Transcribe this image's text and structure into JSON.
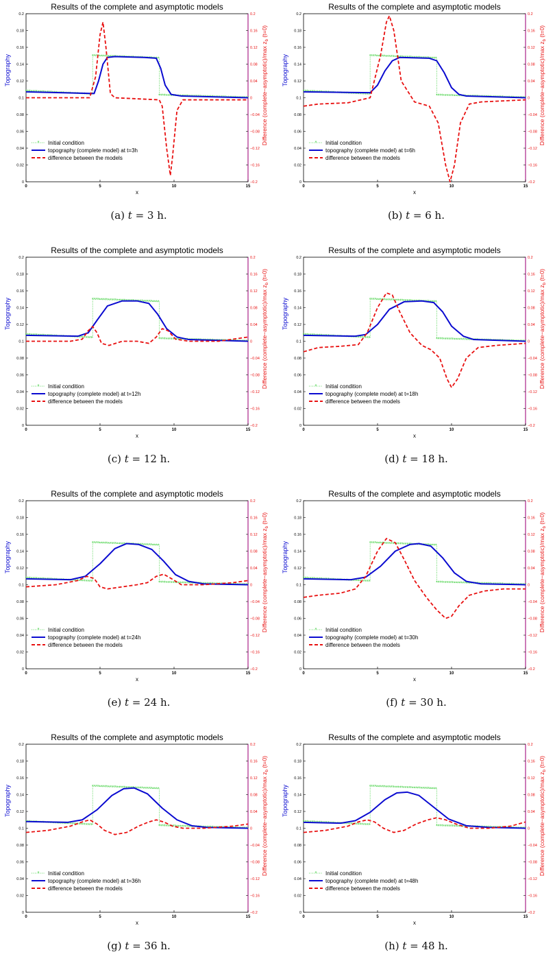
{
  "chart_data": [
    {
      "type": "line",
      "panel_label": "(a)",
      "time_label": "3",
      "unit": "h.",
      "title": "Results of the complete and asymptotic models",
      "xlabel": "x",
      "ylabel_left": "Topography",
      "ylabel_right": "Difference (complete−asymptotic)/max z_b (t=0)",
      "xlim": [
        0,
        15
      ],
      "ylim_left": [
        0,
        0.2
      ],
      "ylim_right": [
        -0.2,
        0.2
      ],
      "legend_position": "lower-left",
      "series": [
        {
          "name": "Initial condition",
          "axis": "left",
          "color": "#33cc33",
          "x": [
            0,
            4.5,
            4.5,
            9,
            9,
            15
          ],
          "y": [
            0.108,
            0.104,
            0.15,
            0.147,
            0.103,
            0.1
          ]
        },
        {
          "name": "topography (complete model) at t=3h",
          "axis": "left",
          "color": "#0a0ad0",
          "x": [
            0,
            4.6,
            4.9,
            5.2,
            5.5,
            6,
            8,
            8.8,
            9.1,
            9.4,
            9.8,
            10.5,
            15
          ],
          "y": [
            0.107,
            0.105,
            0.12,
            0.14,
            0.148,
            0.149,
            0.148,
            0.147,
            0.135,
            0.115,
            0.104,
            0.102,
            0.1
          ]
        },
        {
          "name": "difference between the models",
          "axis": "right",
          "color": "#e81010",
          "x": [
            0,
            4.3,
            4.7,
            5.0,
            5.2,
            5.4,
            5.7,
            6,
            9,
            9.2,
            9.5,
            9.75,
            9.9,
            10.2,
            10.6,
            15
          ],
          "y": [
            0,
            0,
            0.05,
            0.15,
            0.18,
            0.12,
            0.01,
            0,
            -0.005,
            -0.02,
            -0.12,
            -0.185,
            -0.14,
            -0.03,
            -0.005,
            -0.005
          ]
        }
      ]
    },
    {
      "type": "line",
      "panel_label": "(b)",
      "time_label": "6",
      "unit": "h.",
      "title": "Results of the complete and asymptotic models",
      "xlabel": "x",
      "ylabel_left": "Topography",
      "ylabel_right": "Difference (complete−asymptotic)/max z_b (t=0)",
      "xlim": [
        0,
        15
      ],
      "ylim_left": [
        0,
        0.2
      ],
      "ylim_right": [
        -0.2,
        0.2
      ],
      "legend_position": "lower-left",
      "series": [
        {
          "name": "Initial condition",
          "axis": "left",
          "color": "#33cc33",
          "x": [
            0,
            4.5,
            4.5,
            9,
            9,
            15
          ],
          "y": [
            0.108,
            0.104,
            0.15,
            0.147,
            0.103,
            0.1
          ]
        },
        {
          "name": "topography (complete model) at t=6h",
          "axis": "left",
          "color": "#0a0ad0",
          "x": [
            0,
            4.5,
            5.0,
            5.5,
            6.0,
            6.5,
            8.5,
            9.0,
            9.5,
            10.0,
            10.5,
            11,
            15
          ],
          "y": [
            0.107,
            0.106,
            0.115,
            0.132,
            0.144,
            0.148,
            0.147,
            0.144,
            0.13,
            0.112,
            0.104,
            0.102,
            0.1
          ]
        },
        {
          "name": "difference between the models",
          "axis": "right",
          "color": "#e81010",
          "x": [
            0,
            1,
            3,
            4.5,
            5.2,
            5.6,
            5.8,
            6.1,
            6.6,
            7.5,
            8.5,
            9.1,
            9.6,
            9.9,
            10.2,
            10.6,
            11.2,
            12,
            15
          ],
          "y": [
            -0.02,
            -0.015,
            -0.012,
            0.0,
            0.1,
            0.18,
            0.195,
            0.16,
            0.04,
            -0.01,
            -0.02,
            -0.06,
            -0.16,
            -0.2,
            -0.16,
            -0.06,
            -0.015,
            -0.01,
            -0.005
          ]
        }
      ]
    },
    {
      "type": "line",
      "panel_label": "(c)",
      "time_label": "12",
      "unit": "h.",
      "title": "Results of the complete and asymptotic models",
      "xlabel": "x",
      "ylabel_left": "Topography",
      "ylabel_right": "Difference (complete−asymptotic)/max z_b (t=0)",
      "xlim": [
        0,
        15
      ],
      "ylim_left": [
        0,
        0.2
      ],
      "ylim_right": [
        -0.2,
        0.2
      ],
      "legend_position": "lower-left",
      "series": [
        {
          "name": "Initial condition",
          "axis": "left",
          "color": "#33cc33",
          "x": [
            0,
            4.5,
            4.5,
            9,
            9,
            15
          ],
          "y": [
            0.108,
            0.104,
            0.15,
            0.147,
            0.103,
            0.1
          ]
        },
        {
          "name": "topography (complete model) at t=12h",
          "axis": "left",
          "color": "#0a0ad0",
          "x": [
            0,
            3.5,
            4.2,
            4.8,
            5.5,
            6.5,
            7.5,
            8.3,
            8.9,
            9.5,
            10.2,
            11,
            15
          ],
          "y": [
            0.107,
            0.106,
            0.11,
            0.125,
            0.142,
            0.148,
            0.148,
            0.145,
            0.132,
            0.115,
            0.105,
            0.102,
            0.1
          ]
        },
        {
          "name": "difference between the models",
          "axis": "right",
          "color": "#e81010",
          "x": [
            0,
            3,
            3.8,
            4.2,
            4.5,
            4.8,
            5.1,
            5.6,
            6.5,
            7.5,
            8.3,
            8.8,
            9.2,
            9.6,
            10.1,
            11,
            13,
            15
          ],
          "y": [
            0,
            0,
            0.005,
            0.025,
            0.035,
            0.02,
            -0.005,
            -0.01,
            0,
            0,
            -0.005,
            0.01,
            0.03,
            0.025,
            0.005,
            0,
            0,
            0.01
          ]
        }
      ]
    },
    {
      "type": "line",
      "panel_label": "(d)",
      "time_label": "18",
      "unit": "h.",
      "title": "Results of the complete and asymptotic models",
      "xlabel": "x",
      "ylabel_left": "Topography",
      "ylabel_right": "Difference (complete−asymptotic)/max z_b (t=0)",
      "xlim": [
        0,
        15
      ],
      "ylim_left": [
        0,
        0.2
      ],
      "ylim_right": [
        -0.2,
        0.2
      ],
      "legend_position": "lower-left",
      "series": [
        {
          "name": "Initial condition",
          "axis": "left",
          "color": "#33cc33",
          "x": [
            0,
            4.5,
            4.5,
            9,
            9,
            15
          ],
          "y": [
            0.108,
            0.104,
            0.15,
            0.147,
            0.103,
            0.1
          ]
        },
        {
          "name": "topography (complete model) at t=18h",
          "axis": "left",
          "color": "#0a0ad0",
          "x": [
            0,
            3.5,
            4.2,
            5.0,
            5.8,
            6.8,
            8.0,
            8.8,
            9.4,
            10.0,
            10.8,
            11.5,
            15
          ],
          "y": [
            0.107,
            0.106,
            0.108,
            0.12,
            0.138,
            0.147,
            0.148,
            0.146,
            0.135,
            0.118,
            0.106,
            0.102,
            0.1
          ]
        },
        {
          "name": "difference between the models",
          "axis": "right",
          "color": "#e81010",
          "x": [
            0,
            1,
            2.5,
            3.7,
            4.3,
            5.0,
            5.6,
            6.0,
            6.5,
            7.2,
            8.0,
            8.6,
            9.2,
            9.7,
            10.0,
            10.4,
            11.0,
            11.8,
            13,
            15
          ],
          "y": [
            -0.025,
            -0.015,
            -0.012,
            -0.008,
            0.02,
            0.08,
            0.115,
            0.11,
            0.07,
            0.02,
            -0.01,
            -0.02,
            -0.04,
            -0.09,
            -0.11,
            -0.09,
            -0.04,
            -0.015,
            -0.01,
            -0.005
          ]
        }
      ]
    },
    {
      "type": "line",
      "panel_label": "(e)",
      "time_label": "24",
      "unit": "h.",
      "title": "Results of the complete and asymptotic models",
      "xlabel": "x",
      "ylabel_left": "Topography",
      "ylabel_right": "Difference (complete−asymptotic)/max z_b (t=0)",
      "xlim": [
        0,
        15
      ],
      "ylim_left": [
        0,
        0.2
      ],
      "ylim_right": [
        -0.2,
        0.2
      ],
      "legend_position": "lower-left",
      "series": [
        {
          "name": "Initial condition",
          "axis": "left",
          "color": "#33cc33",
          "x": [
            0,
            4.5,
            4.5,
            9,
            9,
            15
          ],
          "y": [
            0.108,
            0.104,
            0.15,
            0.147,
            0.103,
            0.1
          ]
        },
        {
          "name": "topography (complete model) at t=24h",
          "axis": "left",
          "color": "#0a0ad0",
          "x": [
            0,
            3.0,
            4.0,
            5.0,
            6.0,
            6.8,
            7.6,
            8.5,
            9.3,
            10.1,
            11,
            12,
            15
          ],
          "y": [
            0.107,
            0.106,
            0.11,
            0.125,
            0.143,
            0.149,
            0.148,
            0.142,
            0.128,
            0.112,
            0.104,
            0.101,
            0.1
          ]
        },
        {
          "name": "difference between the models",
          "axis": "right",
          "color": "#e81010",
          "x": [
            0,
            2,
            3.5,
            4.1,
            4.6,
            5.0,
            5.5,
            6.5,
            7.5,
            8.2,
            8.8,
            9.3,
            9.8,
            10.5,
            12,
            14,
            15
          ],
          "y": [
            -0.005,
            0,
            0.01,
            0.02,
            0.015,
            -0.005,
            -0.01,
            -0.005,
            0,
            0.005,
            0.02,
            0.025,
            0.015,
            0,
            0,
            0.005,
            0.01
          ]
        }
      ]
    },
    {
      "type": "line",
      "panel_label": "(f)",
      "time_label": "30",
      "unit": "h.",
      "title": "Results of the complete and asymptotic models",
      "xlabel": "x",
      "ylabel_left": "Topography",
      "ylabel_right": "Difference (complete−asymptotic)/max z_b (t=0)",
      "xlim": [
        0,
        15
      ],
      "ylim_left": [
        0,
        0.2
      ],
      "ylim_right": [
        -0.2,
        0.2
      ],
      "legend_position": "lower-left",
      "series": [
        {
          "name": "Initial condition",
          "axis": "left",
          "color": "#33cc33",
          "x": [
            0,
            4.5,
            4.5,
            9,
            9,
            15
          ],
          "y": [
            0.108,
            0.104,
            0.15,
            0.147,
            0.103,
            0.1
          ]
        },
        {
          "name": "topography (complete model) at t=30h",
          "axis": "left",
          "color": "#0a0ad0",
          "x": [
            0,
            3.2,
            4.2,
            5.2,
            6.2,
            7.2,
            7.8,
            8.6,
            9.4,
            10.2,
            11.0,
            12.0,
            15
          ],
          "y": [
            0.107,
            0.106,
            0.109,
            0.122,
            0.14,
            0.148,
            0.149,
            0.146,
            0.132,
            0.114,
            0.104,
            0.101,
            0.1
          ]
        },
        {
          "name": "difference between the models",
          "axis": "right",
          "color": "#e81010",
          "x": [
            0,
            1,
            2.5,
            3.5,
            4.2,
            5.0,
            5.6,
            6.2,
            6.8,
            7.5,
            8.3,
            9.0,
            9.6,
            10.0,
            10.5,
            11.2,
            12.2,
            13.5,
            15
          ],
          "y": [
            -0.03,
            -0.025,
            -0.02,
            -0.01,
            0.02,
            0.08,
            0.11,
            0.1,
            0.06,
            0.01,
            -0.03,
            -0.06,
            -0.08,
            -0.075,
            -0.05,
            -0.025,
            -0.015,
            -0.01,
            -0.01
          ]
        }
      ]
    },
    {
      "type": "line",
      "panel_label": "(g)",
      "time_label": "36",
      "unit": "h.",
      "title": "Results of the complete and asymptotic models",
      "xlabel": "x",
      "ylabel_left": "Topography",
      "ylabel_right": "Difference (complete−asymptotic)/max z_b (t=0)",
      "xlim": [
        0,
        15
      ],
      "ylim_left": [
        0,
        0.2
      ],
      "ylim_right": [
        -0.2,
        0.2
      ],
      "legend_position": "lower-left",
      "series": [
        {
          "name": "Initial condition",
          "axis": "left",
          "color": "#33cc33",
          "x": [
            0,
            4.5,
            4.5,
            9,
            9,
            15
          ],
          "y": [
            0.108,
            0.104,
            0.15,
            0.147,
            0.103,
            0.1
          ]
        },
        {
          "name": "topography (complete model) at t=36h",
          "axis": "left",
          "color": "#0a0ad0",
          "x": [
            0,
            2.8,
            3.8,
            4.8,
            5.8,
            6.6,
            7.3,
            8.2,
            9.2,
            10.2,
            11.2,
            12.2,
            15
          ],
          "y": [
            0.108,
            0.107,
            0.11,
            0.122,
            0.139,
            0.147,
            0.148,
            0.141,
            0.124,
            0.11,
            0.103,
            0.101,
            0.1
          ]
        },
        {
          "name": "difference between the models",
          "axis": "right",
          "color": "#e81010",
          "x": [
            0,
            1.5,
            3,
            3.8,
            4.3,
            4.8,
            5.3,
            6,
            6.8,
            7.6,
            8.3,
            8.8,
            9.3,
            9.9,
            10.6,
            12,
            14,
            15
          ],
          "y": [
            -0.01,
            -0.005,
            0.005,
            0.015,
            0.02,
            0.01,
            -0.005,
            -0.015,
            -0.01,
            0.005,
            0.015,
            0.02,
            0.015,
            0.005,
            0,
            0,
            0.005,
            0.01
          ]
        }
      ]
    },
    {
      "type": "line",
      "panel_label": "(h)",
      "time_label": "48",
      "unit": "h.",
      "title": "Results of the complete and asymptotic models",
      "xlabel": "x",
      "ylabel_left": "Topography",
      "ylabel_right": "Difference (complete−asymptotic)/max z_b (t=0)",
      "xlim": [
        0,
        15
      ],
      "ylim_left": [
        0,
        0.2
      ],
      "ylim_right": [
        -0.2,
        0.2
      ],
      "legend_position": "lower-left",
      "series": [
        {
          "name": "Initial condition",
          "axis": "left",
          "color": "#33cc33",
          "x": [
            0,
            4.5,
            4.5,
            9,
            9,
            15
          ],
          "y": [
            0.108,
            0.104,
            0.15,
            0.147,
            0.103,
            0.1
          ]
        },
        {
          "name": "topography (complete model) at t=48h",
          "axis": "left",
          "color": "#0a0ad0",
          "x": [
            0,
            2.5,
            3.5,
            4.5,
            5.5,
            6.3,
            7.0,
            7.8,
            8.8,
            9.8,
            11.0,
            12.5,
            15
          ],
          "y": [
            0.107,
            0.106,
            0.109,
            0.119,
            0.134,
            0.142,
            0.143,
            0.139,
            0.125,
            0.111,
            0.103,
            0.101,
            0.1
          ]
        },
        {
          "name": "difference between the models",
          "axis": "right",
          "color": "#e81010",
          "x": [
            0,
            1.5,
            3,
            3.7,
            4.3,
            4.8,
            5.4,
            6.1,
            6.8,
            7.6,
            8.4,
            9.0,
            9.6,
            10.3,
            11.2,
            12.5,
            14,
            15
          ],
          "y": [
            -0.01,
            -0.005,
            0.005,
            0.015,
            0.02,
            0.015,
            0,
            -0.01,
            -0.005,
            0.01,
            0.02,
            0.025,
            0.02,
            0.01,
            0,
            0,
            0.005,
            0.015
          ]
        }
      ]
    }
  ]
}
